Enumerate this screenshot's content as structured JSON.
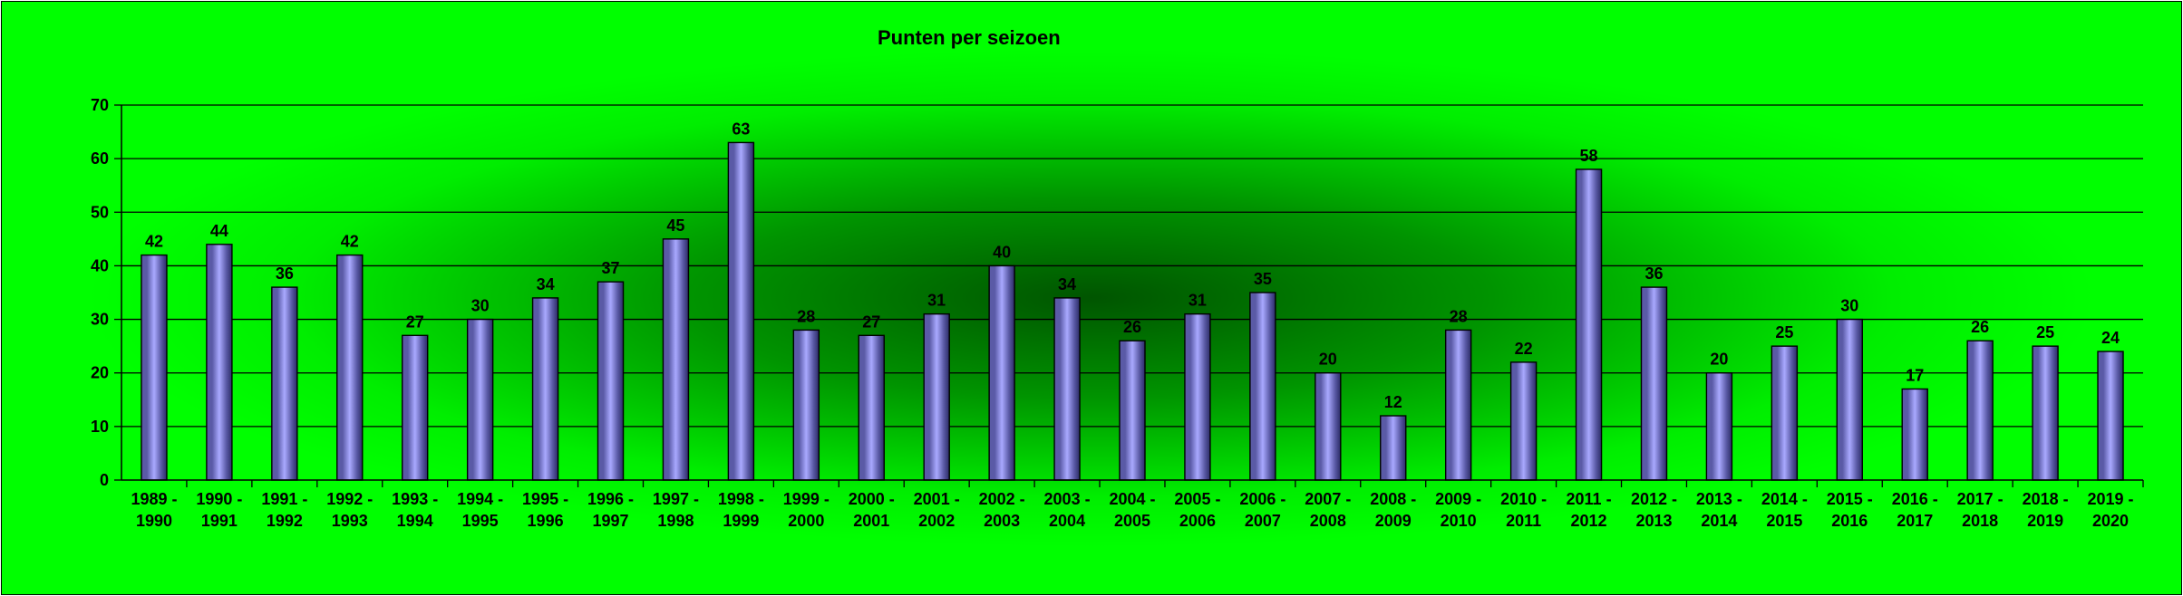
{
  "chart_data": {
    "type": "bar",
    "title": "Punten per seizoen",
    "xlabel": "",
    "ylabel": "",
    "ylim": [
      0,
      70
    ],
    "yticks": [
      0,
      10,
      20,
      30,
      40,
      50,
      60,
      70
    ],
    "grid": true,
    "legend": "none",
    "categories": [
      [
        "1989 -",
        "1990"
      ],
      [
        "1990 -",
        "1991"
      ],
      [
        "1991 -",
        "1992"
      ],
      [
        "1992 -",
        "1993"
      ],
      [
        "1993 -",
        "1994"
      ],
      [
        "1994 -",
        "1995"
      ],
      [
        "1995 -",
        "1996"
      ],
      [
        "1996 -",
        "1997"
      ],
      [
        "1997 -",
        "1998"
      ],
      [
        "1998 -",
        "1999"
      ],
      [
        "1999 -",
        "2000"
      ],
      [
        "2000 -",
        "2001"
      ],
      [
        "2001 -",
        "2002"
      ],
      [
        "2002 -",
        "2003"
      ],
      [
        "2003 -",
        "2004"
      ],
      [
        "2004 -",
        "2005"
      ],
      [
        "2005 -",
        "2006"
      ],
      [
        "2006 -",
        "2007"
      ],
      [
        "2007 -",
        "2008"
      ],
      [
        "2008 -",
        "2009"
      ],
      [
        "2009 -",
        "2010"
      ],
      [
        "2010 -",
        "2011"
      ],
      [
        "2011 -",
        "2012"
      ],
      [
        "2012 -",
        "2013"
      ],
      [
        "2013 -",
        "2014"
      ],
      [
        "2014 -",
        "2015"
      ],
      [
        "2015 -",
        "2016"
      ],
      [
        "2016 -",
        "2017"
      ],
      [
        "2017 -",
        "2018"
      ],
      [
        "2018 -",
        "2019"
      ],
      [
        "2019 -",
        "2020"
      ]
    ],
    "values": [
      42,
      44,
      36,
      42,
      27,
      30,
      34,
      37,
      45,
      63,
      28,
      27,
      31,
      40,
      34,
      26,
      31,
      35,
      20,
      12,
      28,
      22,
      58,
      36,
      20,
      25,
      30,
      17,
      26,
      25,
      24
    ],
    "colors": {
      "background": "#00ff00",
      "background_center": "#005500",
      "bar_edge": "#2b2b66",
      "bar_center": "#a9a9ff",
      "bar_side": "#5a5aa6",
      "gridline": "#000000"
    }
  }
}
